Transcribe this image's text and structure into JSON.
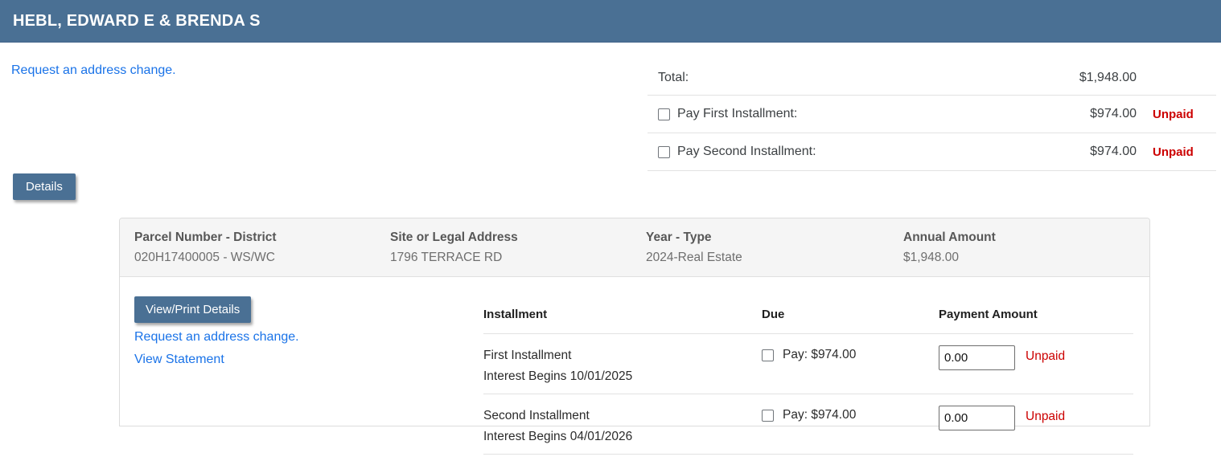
{
  "header": {
    "title": "HEBL, EDWARD E & BRENDA S"
  },
  "top": {
    "address_change_link": "Request an address change."
  },
  "summary": {
    "total_label": "Total:",
    "total_value": "$1,948.00",
    "rows": [
      {
        "label": "Pay First Installment:",
        "amount": "$974.00",
        "status": "Unpaid"
      },
      {
        "label": "Pay Second Installment:",
        "amount": "$974.00",
        "status": "Unpaid"
      }
    ]
  },
  "details_button_label": "Details",
  "panel": {
    "header_fields": [
      {
        "label": "Parcel Number - District",
        "value": "020H17400005 - WS/WC"
      },
      {
        "label": "Site or Legal Address",
        "value": "1796 TERRACE RD"
      },
      {
        "label": "Year - Type",
        "value": "2024-Real Estate"
      },
      {
        "label": "Annual Amount",
        "value": "$1,948.00"
      }
    ],
    "actions": {
      "view_print_label": "View/Print Details",
      "address_change_link": "Request an address change.",
      "view_statement_link": "View Statement"
    },
    "table": {
      "headers": {
        "installment": "Installment",
        "due": "Due",
        "payment": "Payment Amount"
      },
      "rows": [
        {
          "name": "First Installment",
          "interest": "Interest Begins 10/01/2025",
          "due": "Pay: $974.00",
          "amount_value": "0.00",
          "status": "Unpaid"
        },
        {
          "name": "Second Installment",
          "interest": "Interest Begins 04/01/2026",
          "due": "Pay: $974.00",
          "amount_value": "0.00",
          "status": "Unpaid"
        }
      ]
    }
  },
  "colors": {
    "accent": "#4a7094",
    "link": "#1a73e8",
    "unpaid": "#cc0000",
    "panel_header_bg": "#f5f5f5"
  }
}
